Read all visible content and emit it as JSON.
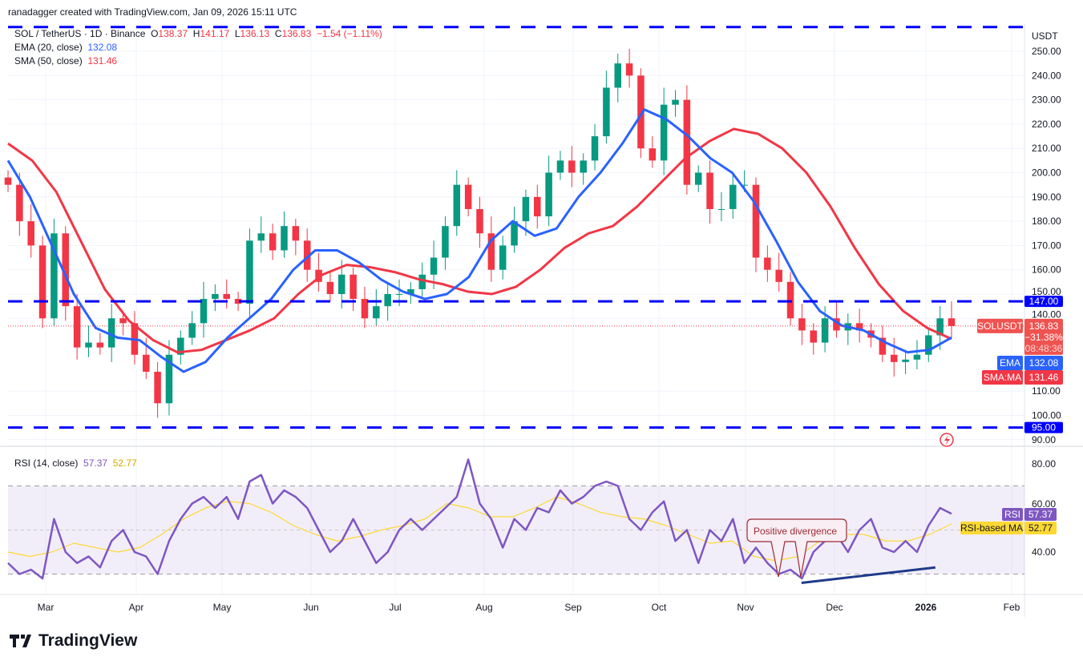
{
  "credit": "ranadagger created with TradingView.com, Jan 09, 2026 15:11 UTC",
  "legend": {
    "symbol": "SOL / TetherUS · 1D · Binance",
    "o_label": "O",
    "o": "138.37",
    "h_label": "H",
    "h": "141.17",
    "l_label": "L",
    "l": "136.13",
    "c_label": "C",
    "c": "136.83",
    "change": "−1.54 (−1.11%)",
    "ema_label": "EMA (20, close)",
    "ema": "132.08",
    "sma_label": "SMA (50, close)",
    "sma": "131.46"
  },
  "rsi_legend": {
    "label": "RSI (14, close)",
    "rsi": "57.37",
    "ma": "52.77"
  },
  "currency": "USDT",
  "badges": {
    "symbol": "SOLUSDT",
    "price": "136.83",
    "pct": "−31.38%",
    "countdown": "08:48:36",
    "ema_tag": "EMA",
    "ema": "132.08",
    "sma_tag": "SMA:MA",
    "sma": "131.46",
    "rsi_tag": "RSI",
    "rsi": "57.37",
    "rsima_tag": "RSI-based MA",
    "rsima": "52.77",
    "lvl147": "147.00",
    "lvl95": "95.00"
  },
  "annotation": "Positive divergence",
  "logo": "TradingView",
  "colors": {
    "up": "#089981",
    "down": "#f23645",
    "ema": "#2962ff",
    "sma": "#f23645",
    "rsi": "#7e57c2",
    "rsi_ma": "#fdd835",
    "level": "#0000ff",
    "trendline": "#1e3a8a"
  },
  "chart_data": [
    {
      "type": "candlestick",
      "title": "SOL / TetherUS · 1D · Binance",
      "period": [
        "2025-02-16",
        "2026-01-09"
      ],
      "x_ticks": [
        "Mar",
        "Apr",
        "May",
        "Jun",
        "Jul",
        "Aug",
        "Sep",
        "Oct",
        "Nov",
        "Dec",
        "2026",
        "Feb"
      ],
      "y_ticks": [
        "90.00",
        "100.00",
        "110.00",
        "140.00",
        "150.00",
        "160.00",
        "170.00",
        "180.00",
        "190.00",
        "200.00",
        "210.00",
        "220.00",
        "230.00",
        "240.00",
        "250.00"
      ],
      "ylim": [
        88,
        262
      ],
      "closes": [
        195,
        180,
        170,
        140,
        175,
        145,
        128,
        130,
        128,
        140,
        138,
        125,
        118,
        105,
        125,
        132,
        138,
        148,
        150,
        148,
        146,
        172,
        175,
        168,
        178,
        172,
        160,
        155,
        150,
        158,
        148,
        140,
        145,
        150,
        150,
        152,
        158,
        165,
        178,
        195,
        185,
        175,
        160,
        170,
        180,
        190,
        182,
        200,
        205,
        200,
        205,
        215,
        235,
        245,
        240,
        210,
        205,
        228,
        230,
        195,
        200,
        185,
        185,
        195,
        195,
        165,
        160,
        155,
        140,
        135,
        130,
        140,
        135,
        138,
        135,
        132,
        125,
        122,
        123,
        125,
        133,
        140,
        136.83
      ],
      "ema20": [
        205,
        190,
        170,
        150,
        136,
        132,
        131,
        124,
        118,
        122,
        132,
        140,
        148,
        160,
        168,
        168,
        163,
        156,
        151,
        148,
        150,
        157,
        172,
        180,
        174,
        177,
        190,
        200,
        212,
        226,
        222,
        215,
        206,
        200,
        188,
        172,
        155,
        143,
        137,
        135,
        130,
        126,
        127,
        132.08
      ],
      "sma50": [
        212,
        205,
        192,
        172,
        152,
        139,
        131,
        126,
        127,
        131,
        135,
        140,
        150,
        158,
        162,
        161,
        159,
        156,
        154,
        151,
        150,
        153,
        160,
        169,
        175,
        178,
        186,
        196,
        206,
        213,
        218,
        216,
        210,
        200,
        186,
        169,
        154,
        143,
        136,
        131.46
      ],
      "levels": [
        {
          "value": 260
        },
        {
          "value": 147,
          "label": "147.00"
        },
        {
          "value": 95,
          "label": "95.00"
        }
      ]
    },
    {
      "type": "line",
      "title": "RSI (14, close)",
      "ylim": [
        20,
        86
      ],
      "y_ticks": [
        "40.00",
        "60.00",
        "80.00"
      ],
      "bands": [
        30,
        50,
        70
      ],
      "rsi": [
        35,
        30,
        32,
        28,
        55,
        40,
        35,
        38,
        33,
        45,
        50,
        40,
        38,
        30,
        45,
        55,
        62,
        65,
        60,
        65,
        55,
        72,
        75,
        62,
        68,
        65,
        60,
        50,
        40,
        45,
        55,
        45,
        35,
        40,
        50,
        55,
        50,
        55,
        60,
        65,
        82,
        62,
        55,
        42,
        55,
        50,
        60,
        58,
        68,
        62,
        65,
        70,
        72,
        70,
        55,
        50,
        58,
        63,
        45,
        50,
        35,
        50,
        45,
        55,
        35,
        42,
        35,
        30,
        32,
        28,
        40,
        45,
        48,
        40,
        50,
        55,
        42,
        40,
        45,
        40,
        52,
        60,
        57.37
      ],
      "rsi_ma": [
        40,
        38,
        40,
        44,
        42,
        40,
        42,
        48,
        55,
        60,
        63,
        62,
        58,
        52,
        48,
        45,
        47,
        50,
        52,
        55,
        62,
        60,
        56,
        56,
        60,
        65,
        62,
        58,
        56,
        55,
        52,
        48,
        44,
        45,
        38,
        36,
        38,
        45,
        48,
        48,
        45,
        45,
        48,
        52.77
      ],
      "trendline": [
        {
          "date": "2025-11-18",
          "value": 26
        },
        {
          "date": "2026-01-02",
          "value": 33
        }
      ],
      "annotation": "Positive divergence"
    }
  ]
}
